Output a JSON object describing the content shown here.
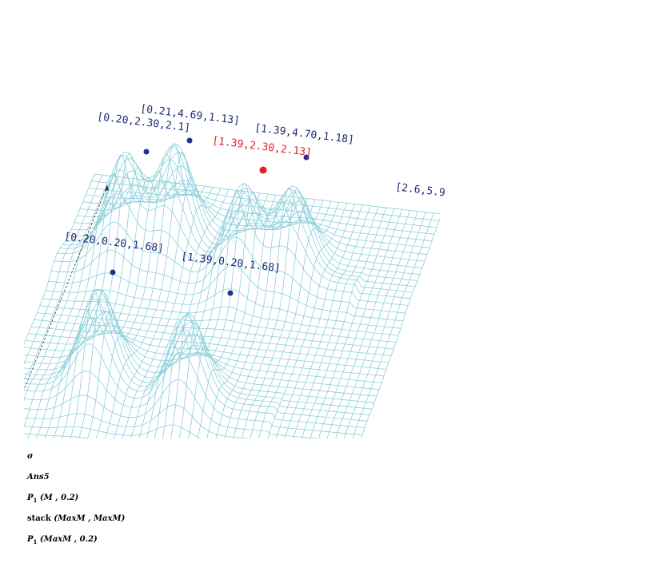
{
  "plot": {
    "point_labels": [
      {
        "text": "[0.21,4.69,1.13]",
        "highlight": false
      },
      {
        "text": "[0.20,2.30,2.1]",
        "highlight": false
      },
      {
        "text": "[1.39,4.70,1.18]",
        "highlight": false
      },
      {
        "text": "[1.39,2.30,2.13]",
        "highlight": true
      },
      {
        "text": "[2.6,5.9",
        "highlight": false
      },
      {
        "text": "[0.20,0.20,1.68]",
        "highlight": false
      },
      {
        "text": "[1.39,0.20,1.68]",
        "highlight": false
      }
    ]
  },
  "expressions": [
    {
      "name": "σ"
    },
    {
      "name": "Ans5"
    },
    {
      "name": "P",
      "sub": "1",
      "args": "(M , 0.2)"
    },
    {
      "name": "stack",
      "args": "(MaxM , MaxM)"
    },
    {
      "name": "P",
      "sub": "1",
      "args": "(MaxM , 0.2)"
    }
  ]
}
